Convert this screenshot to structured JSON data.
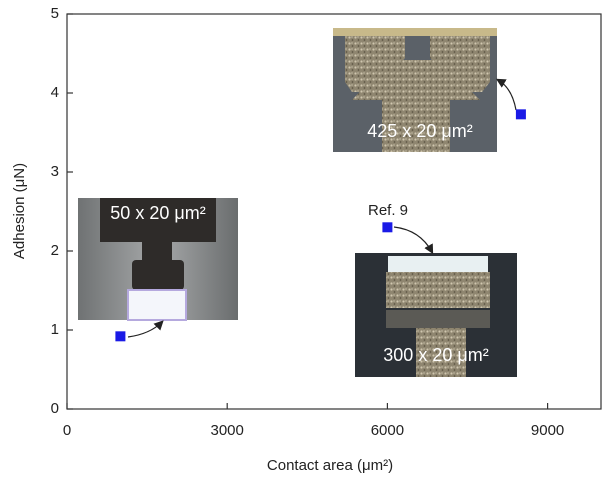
{
  "chart_data": {
    "type": "scatter",
    "xlabel": "Contact area (μm²)",
    "ylabel": "Adhesion (μN)",
    "xlim": [
      0,
      10000
    ],
    "ylim": [
      0,
      5
    ],
    "xticks": [
      0,
      3000,
      6000,
      9000
    ],
    "yticks": [
      0,
      1,
      2,
      3,
      4,
      5
    ],
    "series": [
      {
        "color": "#1a1ae6",
        "x": [
          1000,
          6000,
          8500
        ],
        "values": [
          0.92,
          2.3,
          3.73
        ]
      }
    ],
    "annotations": [
      "Ref. 9",
      "50 x 20 μm²",
      "300 x 20 μm²",
      "425 x 20 μm²"
    ]
  }
}
